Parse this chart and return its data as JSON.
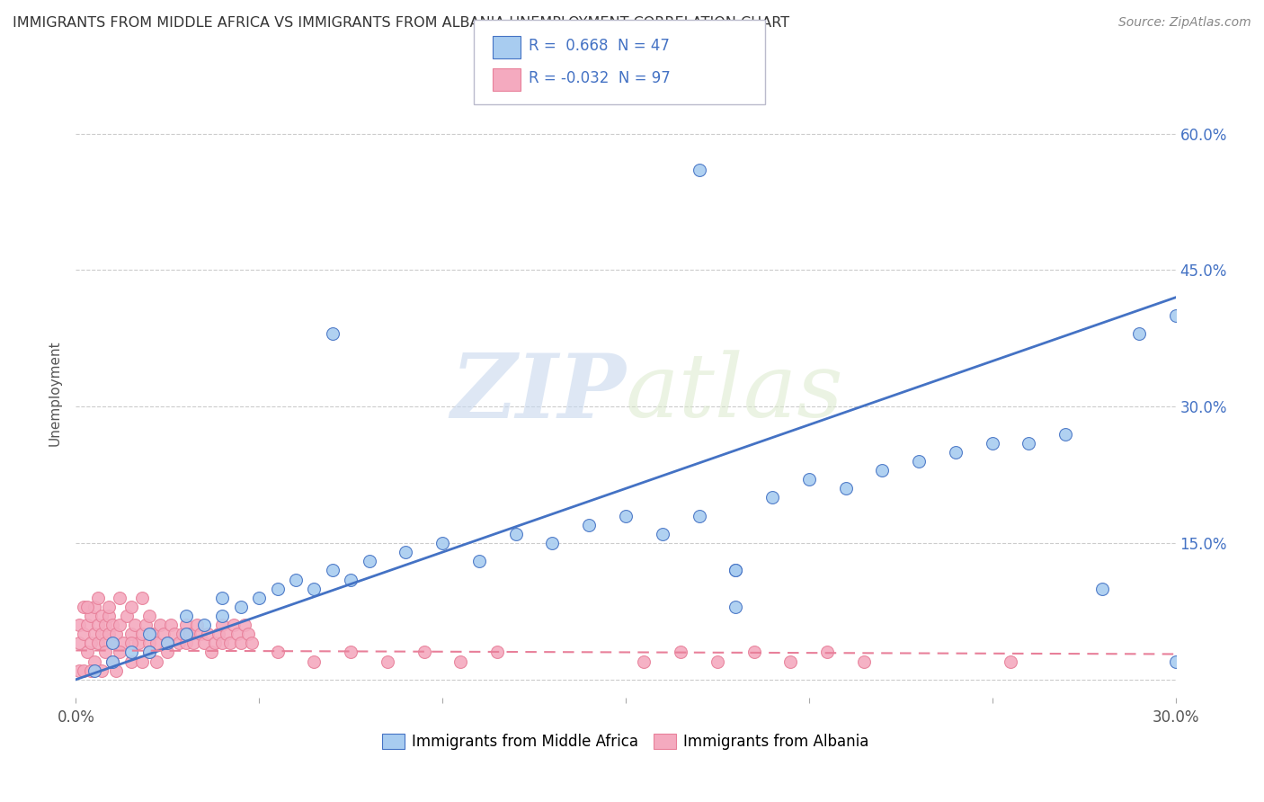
{
  "title": "IMMIGRANTS FROM MIDDLE AFRICA VS IMMIGRANTS FROM ALBANIA UNEMPLOYMENT CORRELATION CHART",
  "source": "Source: ZipAtlas.com",
  "ylabel": "Unemployment",
  "y_ticks": [
    0.0,
    0.15,
    0.3,
    0.45,
    0.6
  ],
  "y_tick_labels": [
    "",
    "15.0%",
    "30.0%",
    "45.0%",
    "60.0%"
  ],
  "xlim": [
    0.0,
    0.3
  ],
  "ylim": [
    -0.02,
    0.65
  ],
  "blue_R": "0.668",
  "blue_N": "47",
  "pink_R": "-0.032",
  "pink_N": "97",
  "blue_color": "#A8CCF0",
  "pink_color": "#F4AABF",
  "blue_line_color": "#4472C4",
  "pink_line_color": "#E8809A",
  "legend_label_blue": "Immigrants from Middle Africa",
  "legend_label_pink": "Immigrants from Albania",
  "watermark": "ZIPatlas",
  "blue_line_x0": 0.0,
  "blue_line_y0": 0.0,
  "blue_line_x1": 0.3,
  "blue_line_y1": 0.42,
  "pink_line_x0": 0.0,
  "pink_line_y0": 0.032,
  "pink_line_x1": 0.3,
  "pink_line_y1": 0.028,
  "blue_scatter_x": [
    0.005,
    0.01,
    0.01,
    0.015,
    0.02,
    0.02,
    0.025,
    0.03,
    0.03,
    0.035,
    0.04,
    0.04,
    0.045,
    0.05,
    0.055,
    0.06,
    0.065,
    0.07,
    0.075,
    0.08,
    0.09,
    0.1,
    0.11,
    0.12,
    0.13,
    0.14,
    0.15,
    0.16,
    0.17,
    0.18,
    0.19,
    0.2,
    0.21,
    0.22,
    0.23,
    0.24,
    0.25,
    0.26,
    0.27,
    0.28,
    0.29,
    0.3,
    0.17,
    0.18,
    0.07,
    0.18,
    0.3
  ],
  "blue_scatter_y": [
    0.01,
    0.02,
    0.04,
    0.03,
    0.03,
    0.05,
    0.04,
    0.05,
    0.07,
    0.06,
    0.07,
    0.09,
    0.08,
    0.09,
    0.1,
    0.11,
    0.1,
    0.12,
    0.11,
    0.13,
    0.14,
    0.15,
    0.13,
    0.16,
    0.15,
    0.17,
    0.18,
    0.16,
    0.18,
    0.12,
    0.2,
    0.22,
    0.21,
    0.23,
    0.24,
    0.25,
    0.26,
    0.26,
    0.27,
    0.1,
    0.38,
    0.4,
    0.56,
    0.12,
    0.38,
    0.08,
    0.02
  ],
  "pink_scatter_x": [
    0.001,
    0.001,
    0.002,
    0.002,
    0.003,
    0.003,
    0.004,
    0.004,
    0.005,
    0.005,
    0.006,
    0.006,
    0.007,
    0.007,
    0.008,
    0.008,
    0.009,
    0.009,
    0.01,
    0.01,
    0.011,
    0.012,
    0.013,
    0.014,
    0.015,
    0.016,
    0.017,
    0.018,
    0.019,
    0.02,
    0.02,
    0.021,
    0.022,
    0.023,
    0.024,
    0.025,
    0.026,
    0.027,
    0.028,
    0.029,
    0.03,
    0.03,
    0.031,
    0.032,
    0.033,
    0.034,
    0.035,
    0.036,
    0.037,
    0.038,
    0.039,
    0.04,
    0.04,
    0.041,
    0.042,
    0.043,
    0.044,
    0.045,
    0.046,
    0.047,
    0.048,
    0.005,
    0.008,
    0.01,
    0.012,
    0.015,
    0.015,
    0.018,
    0.02,
    0.022,
    0.025,
    0.003,
    0.006,
    0.009,
    0.012,
    0.015,
    0.018,
    0.055,
    0.065,
    0.075,
    0.085,
    0.095,
    0.105,
    0.115,
    0.155,
    0.165,
    0.175,
    0.185,
    0.195,
    0.205,
    0.215,
    0.255,
    0.001,
    0.002,
    0.004,
    0.007,
    0.011
  ],
  "pink_scatter_y": [
    0.04,
    0.06,
    0.05,
    0.08,
    0.03,
    0.06,
    0.04,
    0.07,
    0.05,
    0.08,
    0.04,
    0.06,
    0.05,
    0.07,
    0.04,
    0.06,
    0.05,
    0.07,
    0.04,
    0.06,
    0.05,
    0.06,
    0.04,
    0.07,
    0.05,
    0.06,
    0.04,
    0.05,
    0.06,
    0.04,
    0.07,
    0.05,
    0.04,
    0.06,
    0.05,
    0.04,
    0.06,
    0.05,
    0.04,
    0.05,
    0.04,
    0.06,
    0.05,
    0.04,
    0.06,
    0.05,
    0.04,
    0.05,
    0.03,
    0.04,
    0.05,
    0.04,
    0.06,
    0.05,
    0.04,
    0.06,
    0.05,
    0.04,
    0.06,
    0.05,
    0.04,
    0.02,
    0.03,
    0.02,
    0.03,
    0.02,
    0.04,
    0.02,
    0.03,
    0.02,
    0.03,
    0.08,
    0.09,
    0.08,
    0.09,
    0.08,
    0.09,
    0.03,
    0.02,
    0.03,
    0.02,
    0.03,
    0.02,
    0.03,
    0.02,
    0.03,
    0.02,
    0.03,
    0.02,
    0.03,
    0.02,
    0.02,
    0.01,
    0.01,
    0.01,
    0.01,
    0.01
  ]
}
